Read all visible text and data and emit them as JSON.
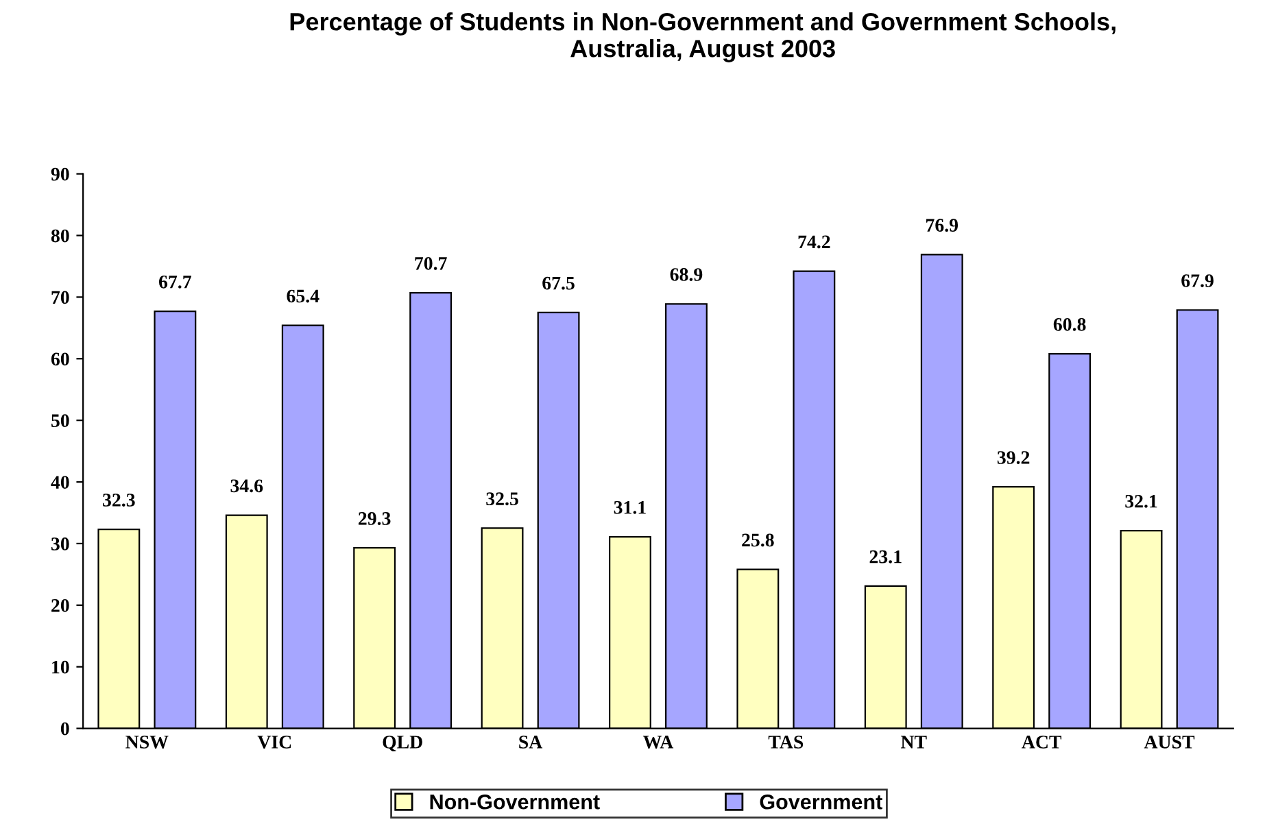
{
  "chart_data": {
    "type": "bar",
    "title": "Percentage of Students in Non-Government and Government Schools,\nAustralia, August 2003",
    "categories": [
      "NSW",
      "VIC",
      "QLD",
      "SA",
      "WA",
      "TAS",
      "NT",
      "ACT",
      "AUST"
    ],
    "series": [
      {
        "name": "Non-Government",
        "color": "#ffffc0",
        "values": [
          32.3,
          34.6,
          29.3,
          32.5,
          31.1,
          25.8,
          23.1,
          39.2,
          32.1
        ]
      },
      {
        "name": "Government",
        "color": "#a6a6ff",
        "values": [
          67.7,
          65.4,
          70.7,
          67.5,
          68.9,
          74.2,
          76.9,
          60.8,
          67.9
        ]
      }
    ],
    "ylim": [
      0,
      90
    ],
    "yticks": [
      0,
      10,
      20,
      30,
      40,
      50,
      60,
      70,
      80,
      90
    ],
    "grid": false,
    "legend": "bottom",
    "data_labels": true
  }
}
